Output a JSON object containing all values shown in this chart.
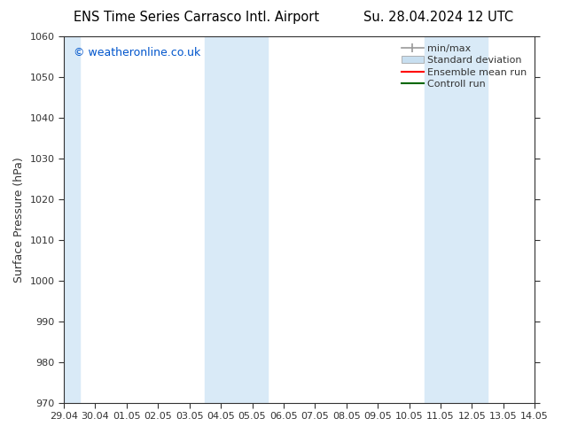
{
  "title_left": "ENS Time Series Carrasco Intl. Airport",
  "title_right": "Su. 28.04.2024 12 UTC",
  "ylabel": "Surface Pressure (hPa)",
  "ylim": [
    970,
    1060
  ],
  "yticks": [
    970,
    980,
    990,
    1000,
    1010,
    1020,
    1030,
    1040,
    1050,
    1060
  ],
  "xlim_start": 0,
  "xlim_end": 15,
  "xtick_labels": [
    "29.04",
    "30.04",
    "01.05",
    "02.05",
    "03.05",
    "04.05",
    "05.05",
    "06.05",
    "07.05",
    "08.05",
    "09.05",
    "10.05",
    "11.05",
    "12.05",
    "13.05",
    "14.05"
  ],
  "xtick_positions": [
    0,
    1,
    2,
    3,
    4,
    5,
    6,
    7,
    8,
    9,
    10,
    11,
    12,
    13,
    14,
    15
  ],
  "shaded_bands": [
    {
      "x_start": 0,
      "x_end": 0.5,
      "color": "#d9eaf7"
    },
    {
      "x_start": 4.5,
      "x_end": 6.5,
      "color": "#d9eaf7"
    },
    {
      "x_start": 11.5,
      "x_end": 13.5,
      "color": "#d9eaf7"
    }
  ],
  "watermark_text": "© weatheronline.co.uk",
  "watermark_color": "#0055cc",
  "legend_items": [
    {
      "label": "min/max",
      "color": "#999999",
      "style": "line_with_ticks"
    },
    {
      "label": "Standard deviation",
      "color": "#c8dff0",
      "style": "filled_box"
    },
    {
      "label": "Ensemble mean run",
      "color": "#ff0000",
      "style": "line"
    },
    {
      "label": "Controll run",
      "color": "#006600",
      "style": "line"
    }
  ],
  "bg_color": "#ffffff",
  "plot_bg_color": "#ffffff",
  "tick_color": "#333333",
  "spine_color": "#333333",
  "title_fontsize": 10.5,
  "ylabel_fontsize": 9,
  "tick_fontsize": 8,
  "watermark_fontsize": 9,
  "legend_fontsize": 8
}
